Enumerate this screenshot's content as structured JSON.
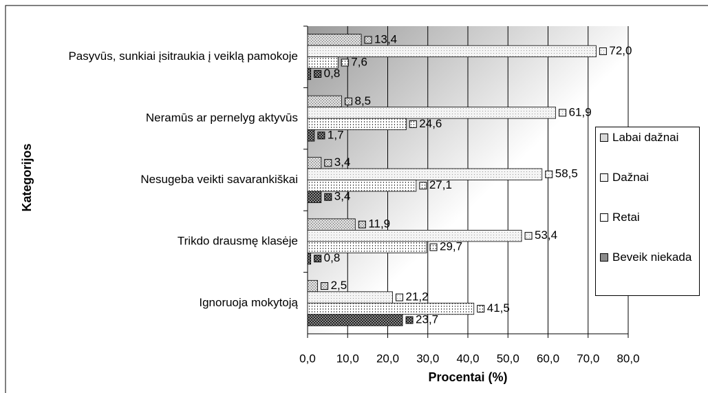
{
  "chart_data": {
    "type": "hbar",
    "categories": [
      "Pasyvūs, sunkiai įsitraukia į veiklą pamokoje",
      "Neramūs ar pernelyg aktyvūs",
      "Nesugeba veikti savarankiškai",
      "Trikdo drausmę klasėje",
      "Ignoruoja mokytoją"
    ],
    "series": [
      {
        "name": "Labai dažnai",
        "color": "#d9d9d9",
        "values": [
          13.4,
          8.5,
          3.4,
          11.9,
          2.5
        ],
        "value_labels": [
          "13,4",
          "8,5",
          "3,4",
          "11,9",
          "2,5"
        ]
      },
      {
        "name": "Dažnai",
        "color": "#f4f4f4",
        "values": [
          72.0,
          61.9,
          58.5,
          53.4,
          21.2
        ],
        "value_labels": [
          "72,0",
          "61,9",
          "58,5",
          "53,4",
          "21,2"
        ]
      },
      {
        "name": "Retai",
        "color": "#ffffff",
        "values": [
          7.6,
          24.6,
          27.1,
          29.7,
          41.5
        ],
        "value_labels": [
          "7,6",
          "24,6",
          "27,1",
          "29,7",
          "41,5"
        ]
      },
      {
        "name": "Beveik niekada",
        "color": "#8c8c8c",
        "values": [
          0.8,
          1.7,
          3.4,
          0.8,
          23.7
        ],
        "value_labels": [
          "0,8",
          "1,7",
          "3,4",
          "0,8",
          "23,7"
        ]
      }
    ],
    "xlabel": "Procentai (%)",
    "ylabel": "Kategorijos",
    "xlim": [
      0,
      80
    ],
    "xticks": [
      {
        "value": 0,
        "label": "0,0"
      },
      {
        "value": 10,
        "label": "10,0"
      },
      {
        "value": 20,
        "label": "20,0"
      },
      {
        "value": 30,
        "label": "30,0"
      },
      {
        "value": 40,
        "label": "40,0"
      },
      {
        "value": 50,
        "label": "50,0"
      },
      {
        "value": 60,
        "label": "60,0"
      },
      {
        "value": 70,
        "label": "70,0"
      },
      {
        "value": 80,
        "label": "80,0"
      }
    ],
    "grid": true,
    "legend": "right"
  }
}
